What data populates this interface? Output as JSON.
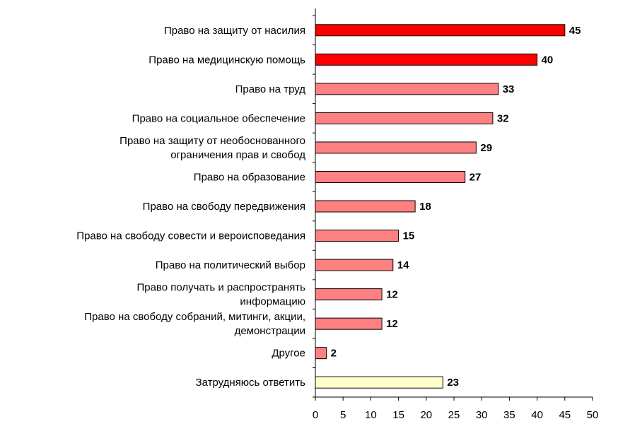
{
  "chart_data": {
    "type": "bar",
    "orientation": "horizontal",
    "categories": [
      [
        "Право на защиту от насилия"
      ],
      [
        "Право на медицинскую помощь"
      ],
      [
        "Право на труд"
      ],
      [
        "Право на социальное обеспечение"
      ],
      [
        "Право на защиту от необоснованного",
        "ограничения прав и свобод"
      ],
      [
        "Право на образование"
      ],
      [
        "Право на свободу передвижения"
      ],
      [
        "Право на свободу совести и вероисповедания"
      ],
      [
        "Право на политический выбор"
      ],
      [
        "Право получать и распространять",
        "информацию"
      ],
      [
        "Право на свободу собраний, митинги, акции,",
        "демонстрации"
      ],
      [
        "Другое"
      ],
      [
        "Затрудняюсь ответить"
      ]
    ],
    "values": [
      45,
      40,
      33,
      32,
      29,
      27,
      18,
      15,
      14,
      12,
      12,
      2,
      23
    ],
    "value_labels": [
      "45",
      "40",
      "33",
      "32",
      "29",
      "27",
      "18",
      "15",
      "14",
      "12",
      "12",
      "2",
      "23"
    ],
    "bar_colors": [
      "#ff0000",
      "#ff0000",
      "#ff8080",
      "#ff8080",
      "#ff8080",
      "#ff8080",
      "#ff8080",
      "#ff8080",
      "#ff8080",
      "#ff8080",
      "#ff8080",
      "#ff8080",
      "#ffffcc"
    ],
    "xlim": [
      0,
      50
    ],
    "xticks": [
      0,
      5,
      10,
      15,
      20,
      25,
      30,
      35,
      40,
      45,
      50
    ],
    "xtick_labels": [
      "0",
      "5",
      "10",
      "15",
      "20",
      "25",
      "30",
      "35",
      "40",
      "45",
      "50"
    ],
    "grid": false,
    "legend": "none"
  }
}
